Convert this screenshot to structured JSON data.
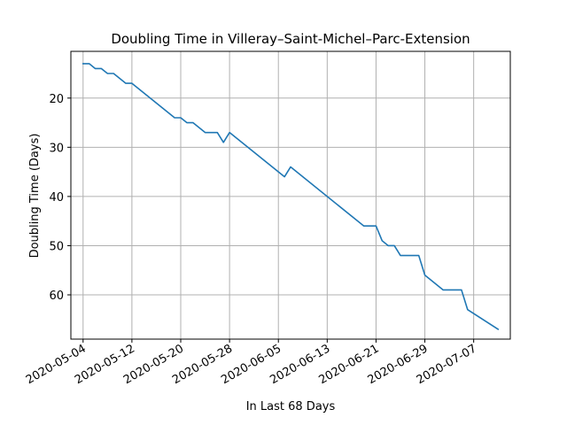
{
  "chart_data": {
    "type": "line",
    "title": "Doubling Time in  Villeray–Saint-Michel–Parc-Extension",
    "xlabel": "In Last 68 Days",
    "ylabel": "Doubling Time (Days)",
    "y_inverted": true,
    "grid": true,
    "xlim": [
      "2020-05-02",
      "2020-07-13"
    ],
    "ylim": [
      69,
      10.5
    ],
    "x_ticks": [
      "2020-05-04",
      "2020-05-12",
      "2020-05-20",
      "2020-05-28",
      "2020-06-05",
      "2020-06-13",
      "2020-06-21",
      "2020-06-29",
      "2020-07-07"
    ],
    "y_ticks": [
      20,
      30,
      40,
      50,
      60
    ],
    "line_color": "#1f77b4",
    "series": [
      {
        "points": [
          [
            "2020-05-04",
            13
          ],
          [
            "2020-05-05",
            13
          ],
          [
            "2020-05-06",
            14
          ],
          [
            "2020-05-07",
            14
          ],
          [
            "2020-05-08",
            15
          ],
          [
            "2020-05-09",
            15
          ],
          [
            "2020-05-11",
            17
          ],
          [
            "2020-05-12",
            17
          ],
          [
            "2020-05-19",
            24
          ],
          [
            "2020-05-20",
            24
          ],
          [
            "2020-05-21",
            25
          ],
          [
            "2020-05-22",
            25
          ],
          [
            "2020-05-24",
            27
          ],
          [
            "2020-05-26",
            27
          ],
          [
            "2020-05-27",
            29
          ],
          [
            "2020-05-28",
            27
          ],
          [
            "2020-06-06",
            36
          ],
          [
            "2020-06-07",
            34
          ],
          [
            "2020-06-19",
            46
          ],
          [
            "2020-06-21",
            46
          ],
          [
            "2020-06-22",
            49
          ],
          [
            "2020-06-23",
            50
          ],
          [
            "2020-06-24",
            50
          ],
          [
            "2020-06-25",
            52
          ],
          [
            "2020-06-28",
            52
          ],
          [
            "2020-06-29",
            56
          ],
          [
            "2020-07-02",
            59
          ],
          [
            "2020-07-05",
            59
          ],
          [
            "2020-07-06",
            63
          ],
          [
            "2020-07-11",
            67
          ]
        ]
      }
    ]
  }
}
